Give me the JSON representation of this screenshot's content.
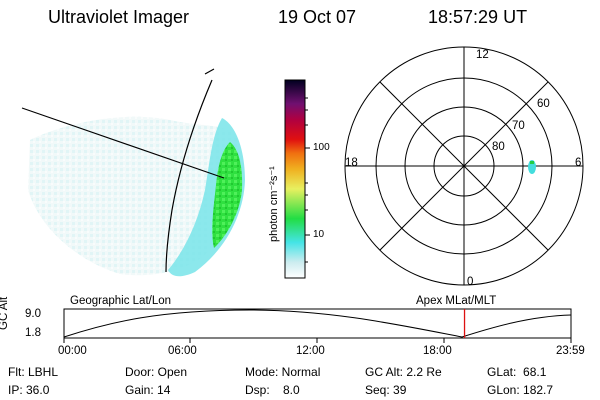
{
  "header": {
    "instrument": "Ultraviolet Imager",
    "date": "19 Oct 07",
    "time": "18:57:29 UT"
  },
  "colorbar": {
    "title": "photon cm⁻²s⁻¹",
    "tick_100": "100",
    "tick_10": "10"
  },
  "polar": {
    "labels": {
      "top": "12",
      "bottom": "0",
      "left": "18",
      "right": "6"
    },
    "rings": [
      "60",
      "70",
      "80"
    ]
  },
  "timeline": {
    "left_title": "Geographic Lat/Lon",
    "right_title": "Apex MLat/MLT",
    "axis_label": "GC Alt",
    "y_max": "9.0",
    "y_min": "1.8",
    "times": [
      "00:00",
      "06:00",
      "12:00",
      "18:00",
      "23:59"
    ],
    "current_time_fraction": 0.79
  },
  "status": {
    "flt": "Flt: LBHL",
    "ip": "IP: 36.0",
    "door": "Door: Open",
    "gain": "Gain: 14",
    "mode": "Mode: Normal",
    "dsp": "Dsp:    8.0",
    "gc_alt": "GC Alt: 2.2 Re",
    "seq": "Seq: 39",
    "glat": "GLat:  68.1",
    "glon": "GLon: 182.7"
  },
  "colors": {
    "marker": "#dd1111",
    "green": "#22dd33",
    "cyan": "#33dddd",
    "paleblue": "#cceeee"
  }
}
